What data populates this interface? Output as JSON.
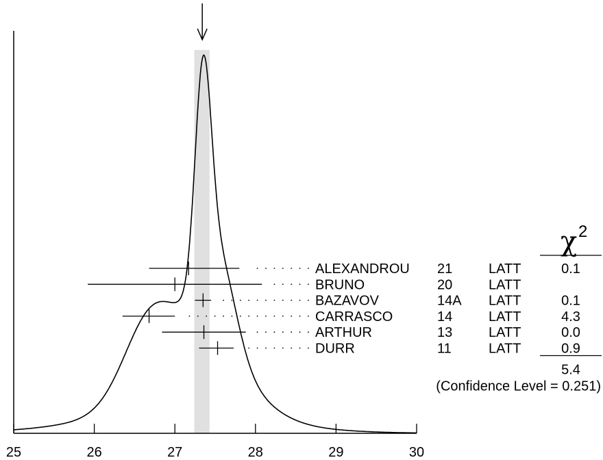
{
  "chart_data": {
    "type": "ideogram",
    "xlim": [
      25,
      30
    ],
    "x_ticks": [
      25,
      26,
      27,
      28,
      29,
      30
    ],
    "band": {
      "center": 27.34,
      "low": 27.24,
      "high": 27.43
    },
    "arrow_value": 27.34,
    "peak_at": 27.34,
    "chi2_header": {
      "symbol": "χ",
      "exponent": "2"
    },
    "measurements": [
      {
        "author": "ALEXANDROU",
        "year": "21",
        "tech": "LATT",
        "value": 27.17,
        "low": 26.68,
        "high": 27.8,
        "chi2": "0.1"
      },
      {
        "author": "BRUNO",
        "year": "20",
        "tech": "LATT",
        "value": 27.0,
        "low": 25.92,
        "high": 28.08,
        "chi2": ""
      },
      {
        "author": "BAZAVOV",
        "year": "14A",
        "tech": "LATT",
        "value": 27.35,
        "low": 27.25,
        "high": 27.45,
        "chi2": "0.1"
      },
      {
        "author": "CARRASCO",
        "year": "14",
        "tech": "LATT",
        "value": 26.68,
        "low": 26.35,
        "high": 27.0,
        "chi2": "4.3"
      },
      {
        "author": "ARTHUR",
        "year": "13",
        "tech": "LATT",
        "value": 27.36,
        "low": 26.84,
        "high": 27.88,
        "chi2": "0.0"
      },
      {
        "author": "DURR",
        "year": "11",
        "tech": "LATT",
        "value": 27.53,
        "low": 27.3,
        "high": 27.73,
        "chi2": "0.9"
      }
    ],
    "chi2_total": "5.4",
    "confidence_label": "(Confidence Level = 0.251)"
  }
}
